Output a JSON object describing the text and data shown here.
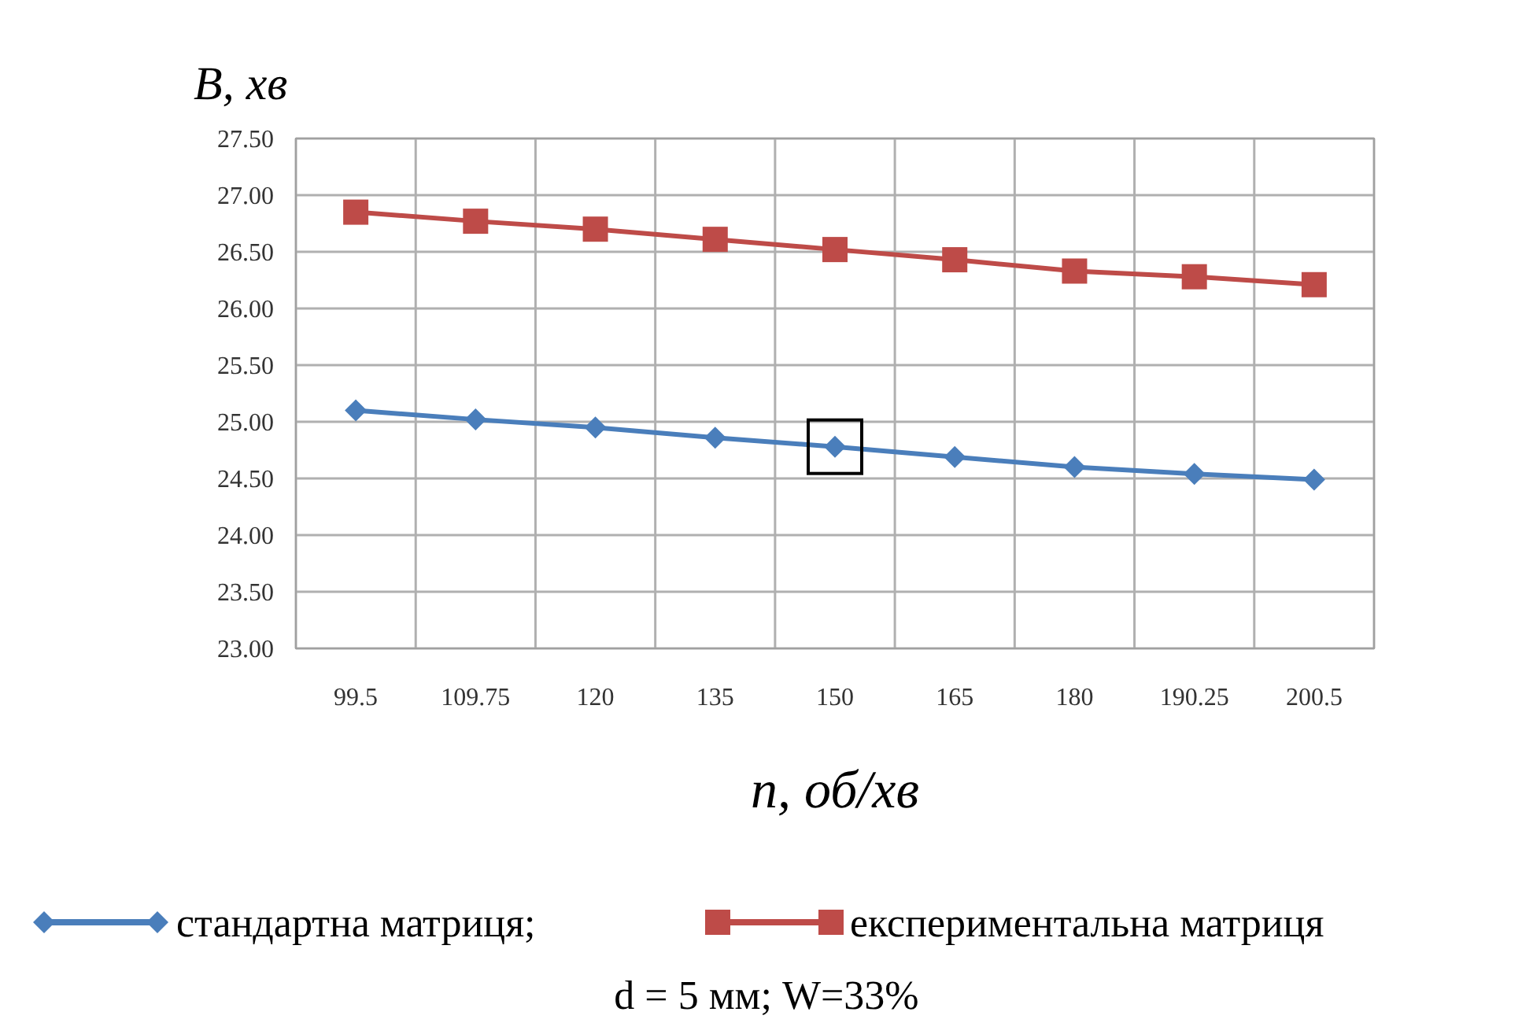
{
  "chart_data": {
    "type": "line",
    "ylabel": "B, хв",
    "xlabel": "n, об/хв",
    "categories": [
      "99.5",
      "109.75",
      "120",
      "135",
      "150",
      "165",
      "180",
      "190.25",
      "200.5"
    ],
    "series": [
      {
        "name": "стандартна матриця;",
        "color": "#4a7ebb",
        "marker": "diamond",
        "values": [
          25.1,
          25.02,
          24.95,
          24.86,
          24.78,
          24.69,
          24.6,
          24.54,
          24.49
        ]
      },
      {
        "name": "експериментальна матриця",
        "color": "#be4b48",
        "marker": "square",
        "values": [
          26.85,
          26.77,
          26.7,
          26.61,
          26.52,
          26.43,
          26.33,
          26.28,
          26.21
        ]
      }
    ],
    "ylim": [
      23,
      27.5
    ],
    "yticks": [
      {
        "value": 23,
        "label": "23.00"
      },
      {
        "value": 23.5,
        "label": "23.50"
      },
      {
        "value": 24,
        "label": "24.00"
      },
      {
        "value": 24.5,
        "label": "24.50"
      },
      {
        "value": 25,
        "label": "25.00"
      },
      {
        "value": 25.5,
        "label": "25.50"
      },
      {
        "value": 26,
        "label": "26.00"
      },
      {
        "value": 26.5,
        "label": "26.50"
      },
      {
        "value": 27,
        "label": "27.00"
      },
      {
        "value": 27.5,
        "label": "27.50"
      }
    ],
    "grid": true,
    "legend": "bottom",
    "line_style": "solid",
    "annotations": [
      "d = 5 мм; W=33%"
    ]
  }
}
